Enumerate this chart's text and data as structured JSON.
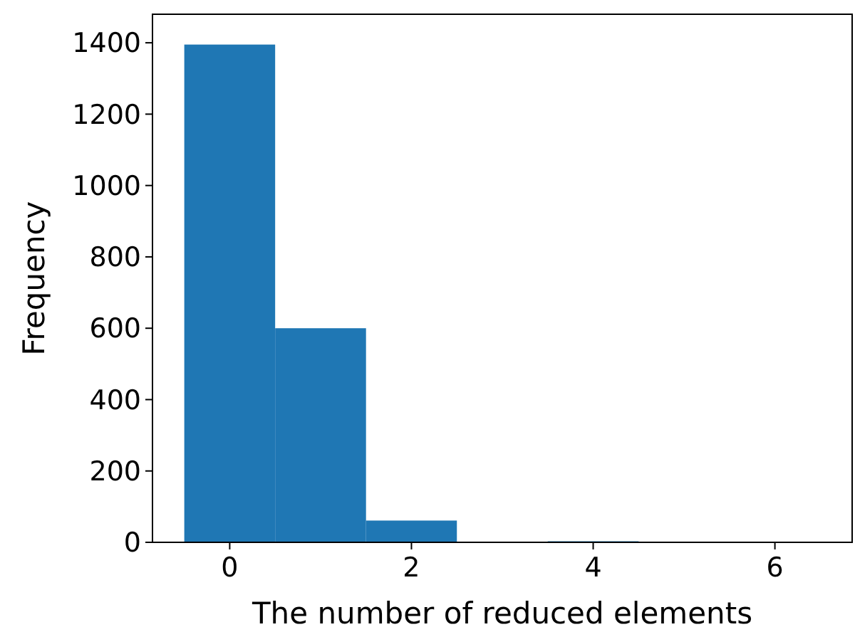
{
  "chart_data": {
    "type": "histogram",
    "xlabel": "The number of reduced elements",
    "ylabel": "Frequency",
    "bins": [
      -0.5,
      0.5,
      1.5,
      2.5,
      3.5,
      4.5,
      5.5,
      6.5
    ],
    "values": [
      1395,
      600,
      61,
      0,
      3,
      0,
      1
    ],
    "color": "#1f77b4",
    "xlim": [
      -0.85,
      6.85
    ],
    "xticks": [
      0,
      2,
      4,
      6
    ],
    "ylim": [
      0,
      1480
    ],
    "yticks": [
      0,
      200,
      400,
      600,
      800,
      1000,
      1200,
      1400
    ],
    "grid": false
  }
}
